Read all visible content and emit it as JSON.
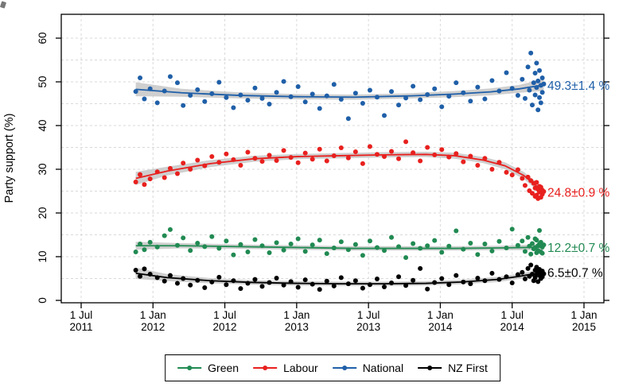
{
  "chart_data": {
    "type": "scatter",
    "title": "",
    "xlabel": "",
    "ylabel": "Party support (%)",
    "ylim": [
      0,
      65
    ],
    "yticks": [
      0,
      10,
      20,
      30,
      40,
      50,
      60
    ],
    "grid": {
      "y_step": 5,
      "style": "dashed",
      "color": "#d9d9d9"
    },
    "band_color": "#c3c3c3",
    "xticks": [
      {
        "t": 2011.5,
        "line1": "1 Jul",
        "line2": "2011"
      },
      {
        "t": 2012.0,
        "line1": "1 Jan",
        "line2": "2012"
      },
      {
        "t": 2012.5,
        "line1": "1 Jul",
        "line2": "2012"
      },
      {
        "t": 2013.0,
        "line1": "1 Jan",
        "line2": "2013"
      },
      {
        "t": 2013.5,
        "line1": "1 Jul",
        "line2": "2013"
      },
      {
        "t": 2014.0,
        "line1": "1 Jan",
        "line2": "2014"
      },
      {
        "t": 2014.5,
        "line1": "1 Jul",
        "line2": "2014"
      },
      {
        "t": 2015.0,
        "line1": "1 Jan",
        "line2": "2015"
      }
    ],
    "poll_dates": [
      2011.88,
      2011.91,
      2011.94,
      2011.98,
      2012.03,
      2012.08,
      2012.12,
      2012.17,
      2012.21,
      2012.26,
      2012.31,
      2012.36,
      2012.41,
      2012.46,
      2012.51,
      2012.56,
      2012.61,
      2012.66,
      2012.71,
      2012.76,
      2012.81,
      2012.86,
      2012.91,
      2012.96,
      2013.01,
      2013.06,
      2013.11,
      2013.16,
      2013.21,
      2013.26,
      2013.31,
      2013.36,
      2013.41,
      2013.46,
      2013.51,
      2013.56,
      2013.61,
      2013.66,
      2013.71,
      2013.76,
      2013.81,
      2013.86,
      2013.91,
      2013.96,
      2014.01,
      2014.06,
      2014.11,
      2014.16,
      2014.21,
      2014.26,
      2014.31,
      2014.36,
      2014.41,
      2014.46,
      2014.5,
      2014.54,
      2014.57,
      2014.59,
      2014.61,
      2014.62,
      2014.63,
      2014.64,
      2014.65,
      2014.66,
      2014.66,
      2014.67,
      2014.67,
      2014.68,
      2014.68,
      2014.69,
      2014.69,
      2014.7,
      2014.7,
      2014.71,
      2014.71,
      2014.72
    ],
    "series": [
      {
        "name": "Green",
        "color": "#218a52",
        "annotation": "12.2±0.7 %",
        "final_value": 12.2,
        "values": [
          11.1,
          12.9,
          11.6,
          13.3,
          12.2,
          14.8,
          16.2,
          12.6,
          14.3,
          11.4,
          13.1,
          12.3,
          14.6,
          11.9,
          13.6,
          10.4,
          12.8,
          11.1,
          13.9,
          12.5,
          10.9,
          13.2,
          11.5,
          12.9,
          14.1,
          11.2,
          12.7,
          13.8,
          10.7,
          12.0,
          13.4,
          11.6,
          12.8,
          10.3,
          13.6,
          12.1,
          11.4,
          14.4,
          12.3,
          9.8,
          13.0,
          11.9,
          12.5,
          13.7,
          11.0,
          12.4,
          15.9,
          11.7,
          13.1,
          10.5,
          12.9,
          11.3,
          13.5,
          12.0,
          16.3,
          12.6,
          13.6,
          11.2,
          14.4,
          12.4,
          10.6,
          13.0,
          11.8,
          14.1,
          12.1,
          10.9,
          13.8,
          12.5,
          11.4,
          16.0,
          12.9,
          11.1,
          13.3,
          12.2,
          10.8,
          12.7
        ],
        "trend": [
          [
            2011.88,
            12.5,
            0.9
          ],
          [
            2012.2,
            12.5,
            0.6
          ],
          [
            2012.6,
            12.3,
            0.5
          ],
          [
            2013.0,
            12.1,
            0.5
          ],
          [
            2013.4,
            11.9,
            0.5
          ],
          [
            2013.8,
            11.9,
            0.5
          ],
          [
            2014.1,
            11.9,
            0.5
          ],
          [
            2014.4,
            12.0,
            0.5
          ],
          [
            2014.6,
            12.1,
            0.6
          ],
          [
            2014.72,
            12.2,
            0.7
          ]
        ]
      },
      {
        "name": "Labour",
        "color": "#e8201e",
        "annotation": "24.8±0.9 %",
        "final_value": 24.8,
        "values": [
          27.1,
          28.8,
          26.5,
          27.8,
          29.4,
          28.1,
          30.2,
          29.0,
          31.4,
          30.0,
          32.1,
          30.8,
          32.9,
          31.6,
          33.5,
          32.2,
          30.9,
          33.9,
          32.5,
          31.8,
          33.2,
          32.0,
          34.3,
          32.7,
          31.5,
          33.7,
          32.3,
          34.6,
          31.9,
          33.1,
          34.9,
          32.6,
          34.0,
          31.3,
          35.2,
          33.4,
          32.9,
          34.1,
          32.4,
          36.3,
          33.8,
          31.9,
          35.0,
          33.3,
          34.5,
          32.8,
          33.6,
          31.7,
          33.0,
          30.9,
          32.5,
          30.0,
          31.6,
          29.3,
          28.7,
          29.9,
          27.9,
          26.3,
          28.2,
          25.1,
          27.4,
          24.5,
          26.8,
          23.8,
          25.7,
          27.0,
          24.1,
          25.4,
          23.3,
          26.1,
          24.8,
          25.9,
          23.6,
          24.3,
          25.2,
          24.9
        ],
        "trend": [
          [
            2011.88,
            27.9,
            1.5
          ],
          [
            2012.1,
            29.6,
            1.0
          ],
          [
            2012.4,
            31.3,
            0.8
          ],
          [
            2012.7,
            32.4,
            0.7
          ],
          [
            2013.0,
            32.9,
            0.6
          ],
          [
            2013.3,
            33.1,
            0.6
          ],
          [
            2013.6,
            33.3,
            0.6
          ],
          [
            2013.9,
            33.4,
            0.6
          ],
          [
            2014.1,
            33.1,
            0.7
          ],
          [
            2014.3,
            32.1,
            0.7
          ],
          [
            2014.45,
            30.8,
            0.8
          ],
          [
            2014.58,
            28.6,
            0.8
          ],
          [
            2014.72,
            24.8,
            0.9
          ]
        ]
      },
      {
        "name": "National",
        "color": "#1f5fa8",
        "annotation": "49.3±1.4 %",
        "final_value": 49.3,
        "values": [
          47.8,
          50.9,
          46.1,
          48.4,
          45.2,
          47.9,
          51.2,
          49.8,
          44.6,
          46.9,
          48.2,
          45.5,
          47.3,
          49.9,
          46.4,
          44.1,
          47.0,
          45.8,
          48.6,
          46.2,
          44.9,
          47.6,
          50.1,
          46.6,
          48.9,
          45.4,
          47.2,
          43.9,
          46.8,
          49.4,
          46.0,
          41.6,
          47.4,
          45.1,
          48.1,
          46.5,
          42.3,
          47.8,
          44.7,
          46.3,
          49.0,
          45.9,
          47.1,
          48.4,
          44.3,
          46.7,
          49.8,
          47.5,
          45.6,
          48.8,
          46.1,
          50.3,
          47.9,
          52.1,
          48.5,
          46.9,
          50.6,
          46.2,
          53.4,
          48.1,
          56.6,
          44.7,
          49.8,
          52.0,
          47.0,
          54.3,
          48.7,
          43.6,
          50.2,
          46.4,
          52.6,
          49.2,
          45.2,
          50.9,
          47.6,
          49.5
        ],
        "trend": [
          [
            2011.88,
            48.3,
            1.6
          ],
          [
            2012.2,
            47.5,
            0.9
          ],
          [
            2012.6,
            46.9,
            0.7
          ],
          [
            2013.0,
            46.6,
            0.6
          ],
          [
            2013.4,
            46.5,
            0.6
          ],
          [
            2013.8,
            46.8,
            0.6
          ],
          [
            2014.1,
            47.2,
            0.7
          ],
          [
            2014.35,
            47.7,
            0.8
          ],
          [
            2014.55,
            48.4,
            0.9
          ],
          [
            2014.72,
            49.3,
            1.4
          ]
        ]
      },
      {
        "name": "NZ First",
        "color": "#000000",
        "annotation": "6.5±0.7 %",
        "final_value": 6.5,
        "values": [
          6.9,
          5.5,
          7.2,
          6.0,
          5.2,
          4.4,
          5.7,
          3.9,
          5.0,
          3.5,
          4.6,
          2.9,
          4.2,
          5.3,
          3.6,
          4.5,
          2.7,
          3.9,
          4.8,
          3.2,
          4.1,
          5.1,
          3.5,
          4.3,
          3.0,
          4.7,
          3.7,
          2.5,
          4.4,
          3.3,
          5.2,
          3.8,
          4.5,
          2.8,
          3.6,
          4.9,
          3.1,
          4.0,
          5.4,
          3.4,
          4.6,
          7.3,
          2.6,
          4.1,
          5.0,
          3.6,
          5.7,
          4.2,
          3.8,
          5.1,
          4.5,
          6.2,
          4.8,
          5.4,
          4.0,
          5.9,
          6.4,
          4.9,
          7.3,
          5.5,
          8.1,
          6.0,
          4.5,
          6.9,
          5.2,
          7.6,
          5.9,
          4.3,
          6.6,
          5.7,
          7.1,
          6.2,
          5.0,
          6.7,
          5.4,
          6.1
        ],
        "trend": [
          [
            2011.88,
            6.2,
            1.3
          ],
          [
            2012.1,
            5.2,
            0.8
          ],
          [
            2012.4,
            4.5,
            0.6
          ],
          [
            2012.7,
            4.1,
            0.5
          ],
          [
            2013.0,
            3.9,
            0.5
          ],
          [
            2013.3,
            3.8,
            0.5
          ],
          [
            2013.6,
            3.8,
            0.5
          ],
          [
            2013.9,
            3.9,
            0.5
          ],
          [
            2014.15,
            4.2,
            0.5
          ],
          [
            2014.4,
            4.8,
            0.6
          ],
          [
            2014.55,
            5.5,
            0.6
          ],
          [
            2014.72,
            6.5,
            0.7
          ]
        ]
      }
    ],
    "legend_position": "bottom"
  }
}
